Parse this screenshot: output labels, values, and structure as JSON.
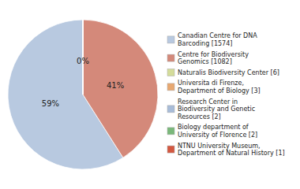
{
  "chart_data": {
    "type": "pie",
    "categories": [
      "Canadian Centre for DNA\nBarcoding [1574]",
      "Centre for Biodiversity\nGenomics [1082]",
      "Naturalis Biodiversity Center [6]",
      "Universita di Firenze,\nDepartment of Biology [3]",
      "Research Center in\nBiodiversity and Genetic\nResources [2]",
      "Biology department of\nUniversity of Florence [2]",
      "NTNU University Museum,\nDepartment of Natural History [1]"
    ],
    "values": [
      59,
      41,
      0,
      0,
      0,
      0,
      0
    ],
    "value_labels": [
      "59%",
      "41%",
      "0%",
      null,
      null,
      null,
      null
    ],
    "colors": [
      "#b8c9e0",
      "#d4897a",
      "#d4dc9a",
      "#e8a870",
      "#a8bcd8",
      "#7ab87a",
      "#d45840"
    ],
    "data_labels": true,
    "legend": "right"
  }
}
